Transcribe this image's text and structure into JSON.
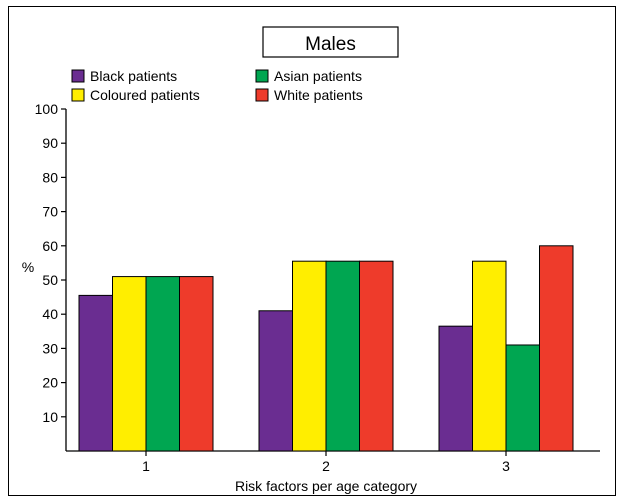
{
  "chart_data": {
    "type": "bar",
    "title": "Males",
    "xlabel": "Risk factors per age category",
    "ylabel": "%",
    "ylim": [
      0,
      100
    ],
    "yticks": [
      10,
      20,
      30,
      40,
      50,
      60,
      70,
      80,
      90,
      100
    ],
    "categories": [
      "1",
      "2",
      "3"
    ],
    "grid": false,
    "legend_position": "top-left",
    "series": [
      {
        "name": "Black patients",
        "color": "#6a2d91",
        "values": [
          45.5,
          41,
          36.5
        ]
      },
      {
        "name": "Coloured patients",
        "color": "#ffee00",
        "values": [
          51,
          55.5,
          55.5
        ]
      },
      {
        "name": "Asian patients",
        "color": "#00a651",
        "values": [
          51,
          55.5,
          31
        ]
      },
      {
        "name": "White patients",
        "color": "#ee3b2b",
        "values": [
          51,
          55.5,
          60
        ]
      }
    ]
  }
}
